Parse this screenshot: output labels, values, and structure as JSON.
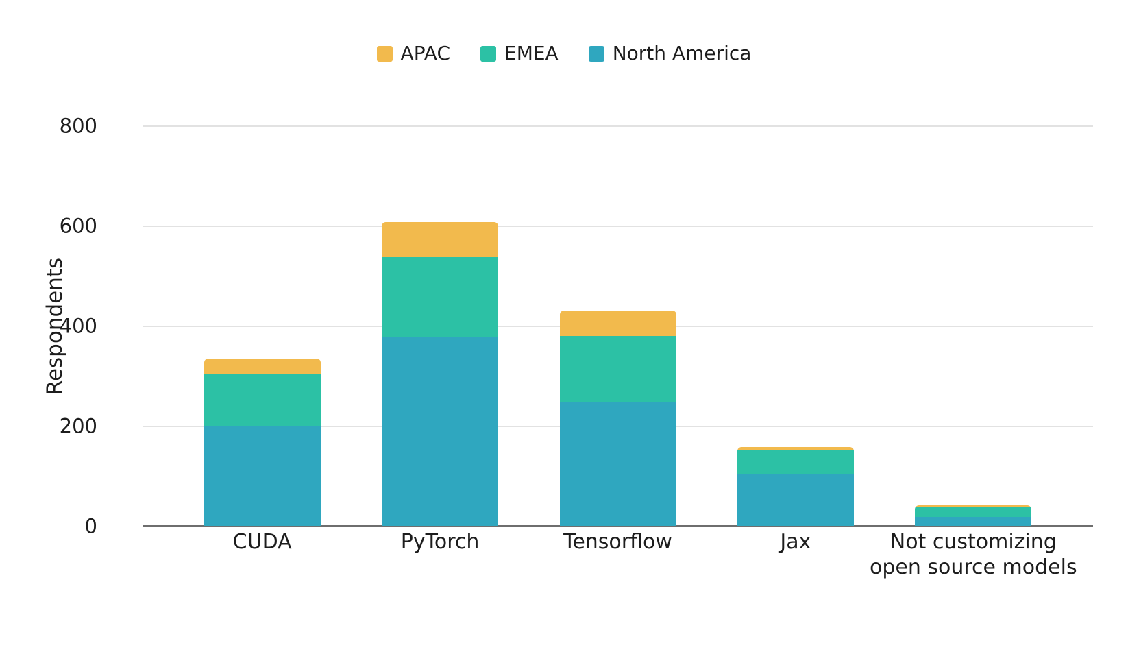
{
  "chart_data": {
    "type": "bar",
    "stacked": true,
    "ylabel": "Respondents",
    "ylim": [
      0,
      800
    ],
    "yticks": [
      0,
      200,
      400,
      600,
      800
    ],
    "grid": true,
    "legend_position": "top",
    "categories": [
      "CUDA",
      "PyTorch",
      "Tensorflow",
      "Jax",
      "Not customizing open source models"
    ],
    "category_display_lines": [
      [
        "CUDA"
      ],
      [
        "PyTorch"
      ],
      [
        "Tensorflow"
      ],
      [
        "Jax"
      ],
      [
        "Not customizing",
        "open source models"
      ]
    ],
    "series": [
      {
        "name": "North America",
        "color": "#2FA7BF",
        "values": [
          200,
          378,
          250,
          105,
          19
        ]
      },
      {
        "name": "EMEA",
        "color": "#2CC1A5",
        "values": [
          105,
          160,
          131,
          48,
          21
        ]
      },
      {
        "name": "APAC",
        "color": "#F2BA4D",
        "values": [
          30,
          70,
          50,
          6,
          3
        ]
      }
    ],
    "stack_totals": [
      335,
      608,
      431,
      159,
      43
    ],
    "legend_items": [
      {
        "label": "APAC",
        "color": "#F2BA4D"
      },
      {
        "label": "EMEA",
        "color": "#2CC1A5"
      },
      {
        "label": "North America",
        "color": "#2FA7BF"
      }
    ]
  },
  "colors": {
    "background": "#ffffff",
    "gridline": "#e2e2e2",
    "axis_line": "#6e6e6e",
    "text": "#1d1d1d"
  }
}
